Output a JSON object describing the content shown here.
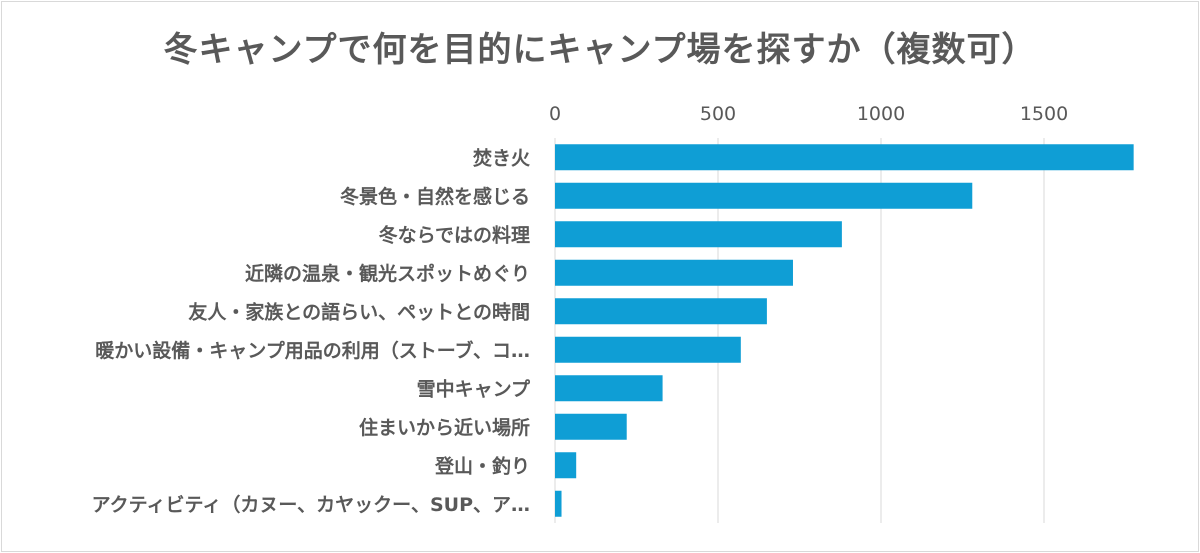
{
  "chart_data": {
    "type": "bar",
    "orientation": "horizontal",
    "title": "冬キャンプで何を目的にキャンプ場を探すか（複数可）",
    "categories": [
      "焚き火",
      "冬景色・自然を感じる",
      "冬ならではの料理",
      "近隣の温泉・観光スポットめぐり",
      "友人・家族との語らい、ペットとの時間",
      "暖かい設備・キャンプ用品の利用（ストーブ、コ…",
      "雪中キャンプ",
      "住まいから近い場所",
      "登山・釣り",
      "アクティビティ（カヌー、カヤックー、SUP、ア…"
    ],
    "values": [
      1775,
      1280,
      880,
      730,
      650,
      570,
      330,
      220,
      65,
      20
    ],
    "xlim": [
      0,
      1750
    ],
    "xticks": [
      0,
      500,
      1000,
      1500
    ],
    "xlabel": "",
    "ylabel": "",
    "grid": true,
    "legend": "none",
    "bar_color": "#0f9ed5",
    "grid_color": "#d9d9d9"
  }
}
